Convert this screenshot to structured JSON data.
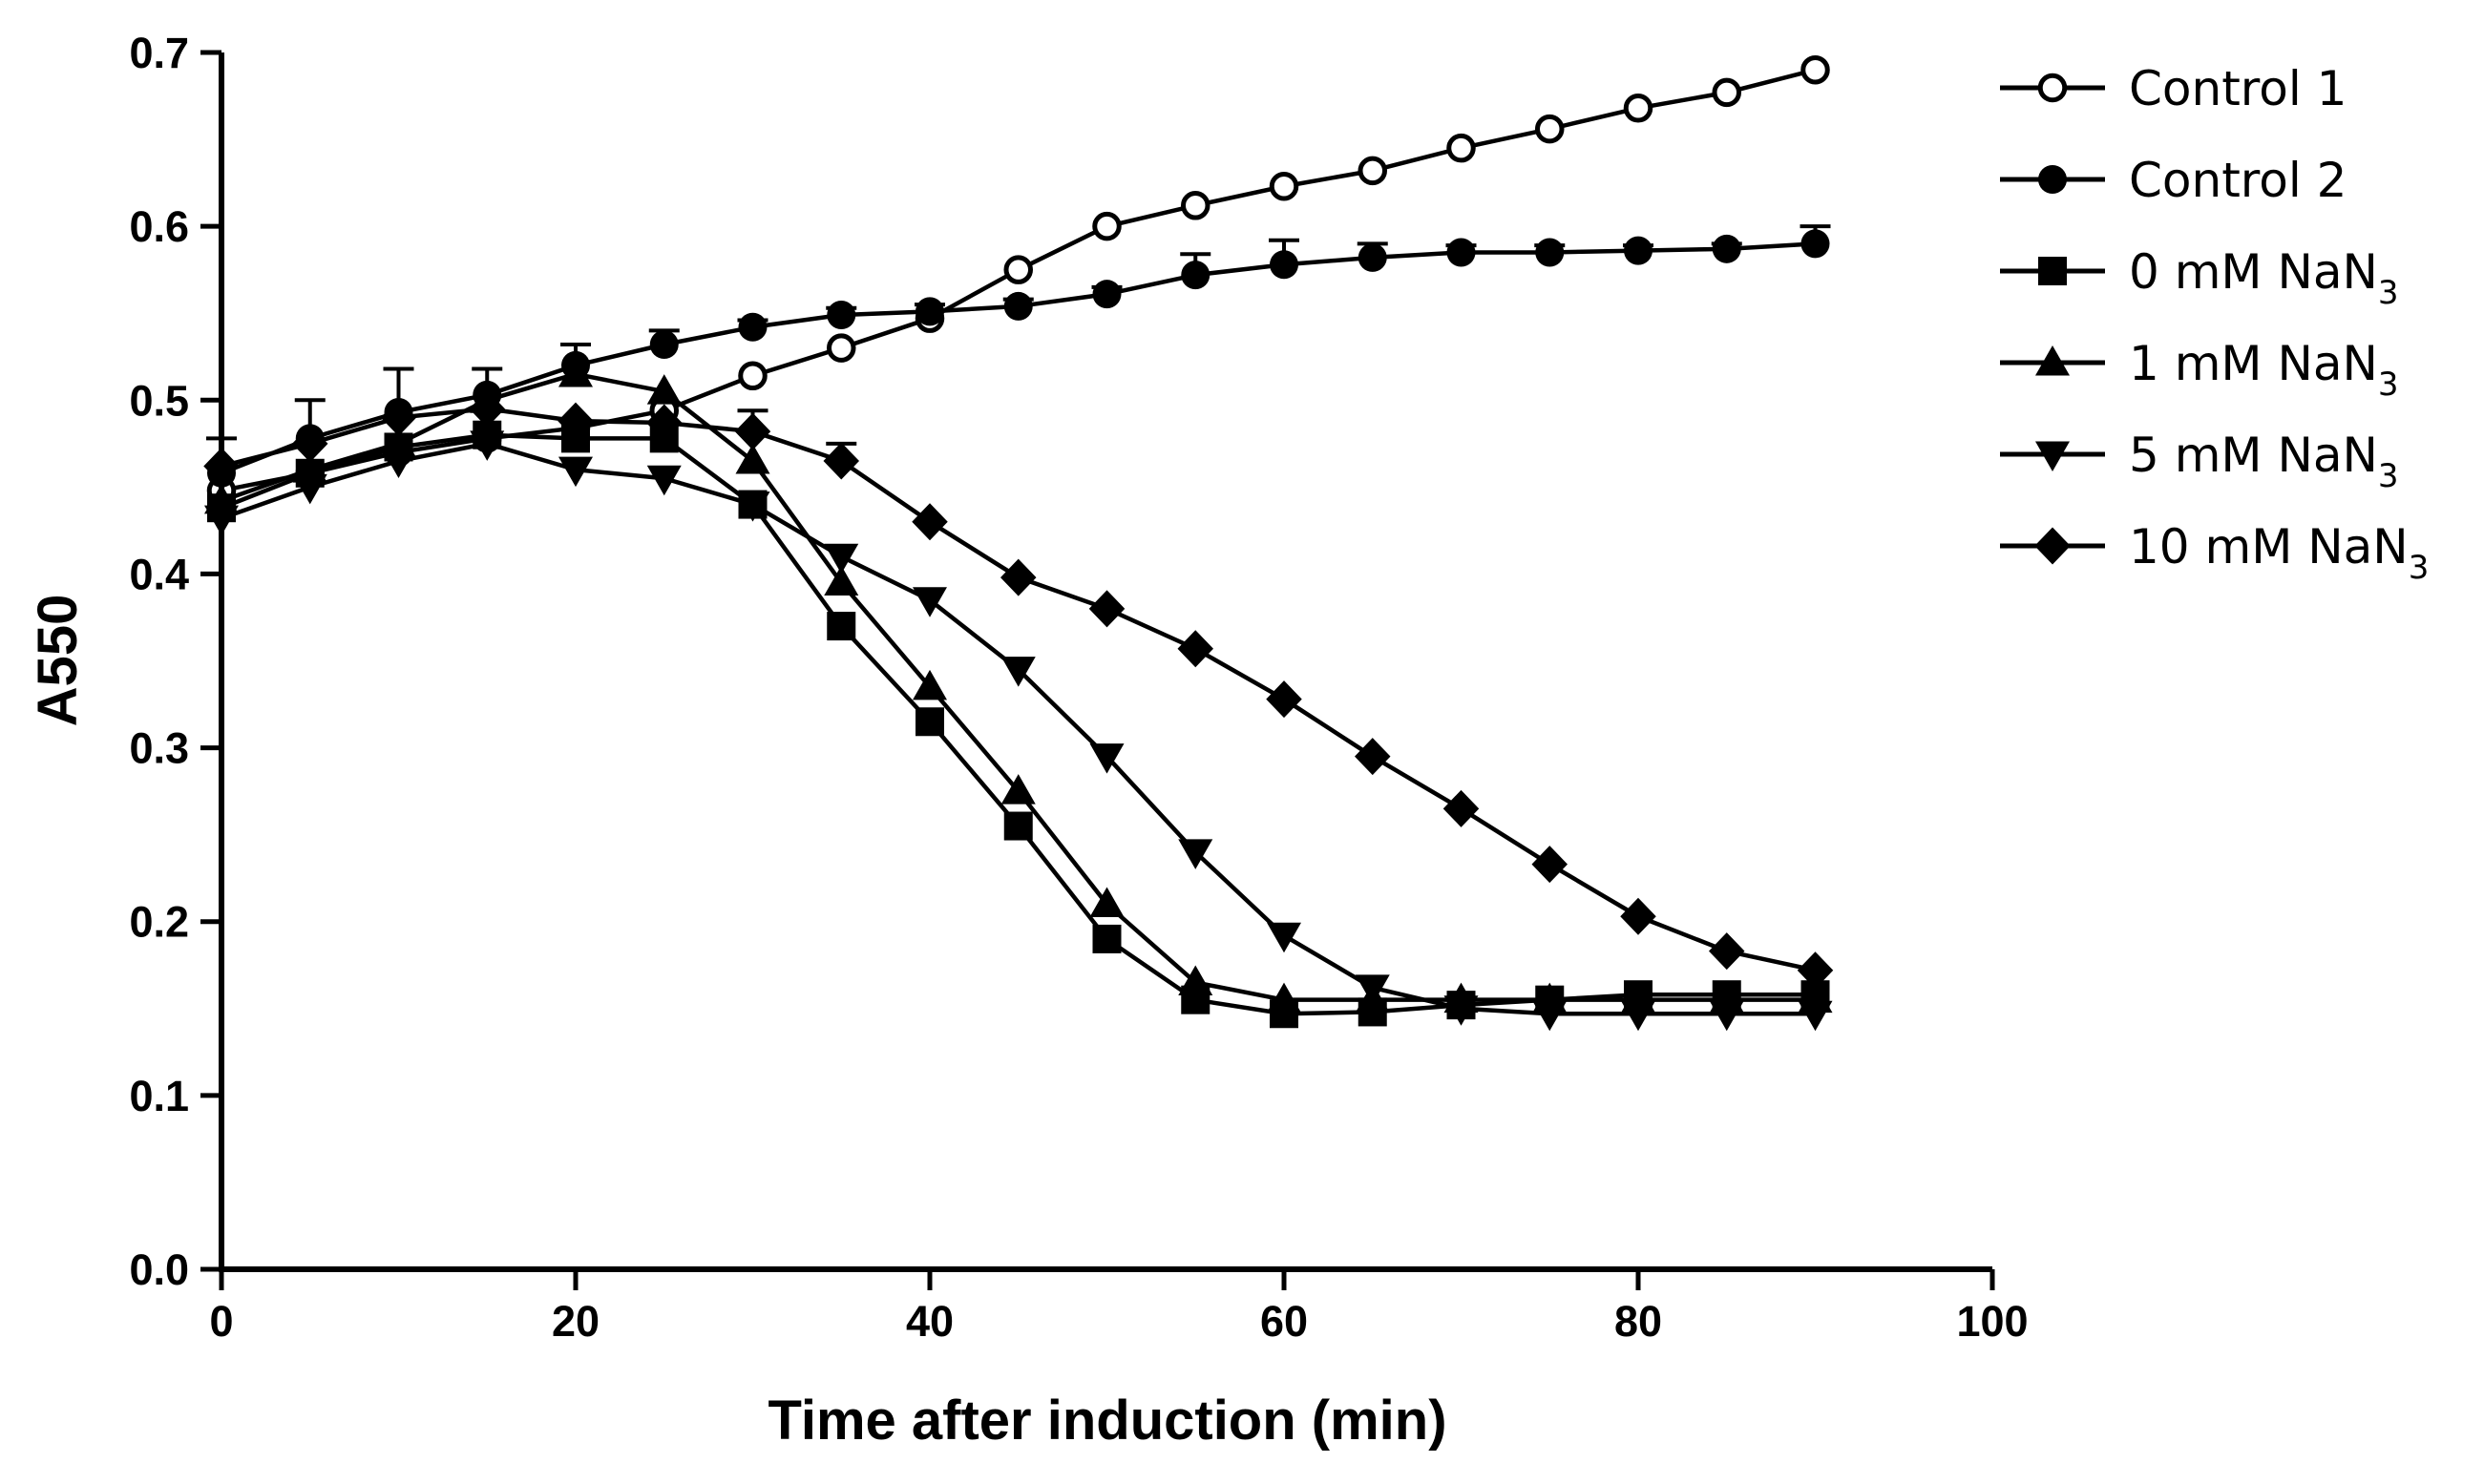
{
  "chart_data": {
    "type": "line",
    "title": "",
    "xlabel": "Time after induction (min)",
    "ylabel": "A550",
    "xlim": [
      0,
      100
    ],
    "ylim": [
      0.0,
      0.7
    ],
    "x_ticks": [
      "0",
      "20",
      "40",
      "60",
      "80",
      "100"
    ],
    "y_ticks": [
      "0.0",
      "0.1",
      "0.2",
      "0.3",
      "0.4",
      "0.5",
      "0.6",
      "0.7"
    ],
    "legend_position": "top-right, outside plot",
    "x": [
      0,
      5,
      10,
      15,
      20,
      25,
      30,
      35,
      40,
      45,
      50,
      55,
      60,
      65,
      70,
      75,
      80,
      85,
      90
    ],
    "series": [
      {
        "name": "Control 1",
        "label_main": "Control 1",
        "label_sub": "",
        "marker": "hollow-circle",
        "values": [
          0.448,
          0.458,
          0.47,
          0.478,
          0.484,
          0.494,
          0.514,
          0.53,
          0.547,
          0.575,
          0.6,
          0.612,
          0.623,
          0.632,
          0.645,
          0.656,
          0.668,
          0.677,
          0.69
        ],
        "errors": [
          0,
          0,
          0,
          0,
          0,
          0,
          0,
          0,
          0,
          0,
          0,
          0,
          0,
          0,
          0,
          0,
          0,
          0,
          0
        ]
      },
      {
        "name": "Control 2",
        "label_main": "Control 2",
        "label_sub": "",
        "marker": "circle",
        "values": [
          0.458,
          0.478,
          0.493,
          0.503,
          0.52,
          0.532,
          0.542,
          0.549,
          0.551,
          0.554,
          0.561,
          0.572,
          0.578,
          0.582,
          0.585,
          0.585,
          0.586,
          0.587,
          0.59
        ],
        "errors": [
          0.02,
          0.022,
          0.025,
          0.015,
          0.012,
          0.008,
          0.004,
          0.004,
          0.004,
          0.004,
          0.004,
          0.012,
          0.014,
          0.008,
          0.004,
          0.004,
          0.003,
          0.003,
          0.01
        ]
      },
      {
        "name": "0 mM NaN3",
        "label_main": "0 mM NaN",
        "label_sub": "3",
        "marker": "square",
        "values": [
          0.438,
          0.458,
          0.473,
          0.48,
          0.478,
          0.478,
          0.44,
          0.37,
          0.315,
          0.255,
          0.19,
          0.155,
          0.147,
          0.148,
          0.152,
          0.155,
          0.158,
          0.158,
          0.158
        ],
        "errors": [
          0,
          0,
          0,
          0,
          0,
          0,
          0,
          0,
          0,
          0,
          0,
          0,
          0,
          0,
          0,
          0,
          0,
          0,
          0
        ]
      },
      {
        "name": "1 mM NaN3",
        "label_main": "1 mM NaN",
        "label_sub": "3",
        "marker": "triangle-up",
        "values": [
          0.442,
          0.46,
          0.475,
          0.5,
          0.515,
          0.505,
          0.465,
          0.395,
          0.335,
          0.275,
          0.21,
          0.165,
          0.155,
          0.155,
          0.155,
          0.155,
          0.155,
          0.155,
          0.155
        ],
        "errors": [
          0,
          0,
          0,
          0,
          0,
          0,
          0,
          0,
          0,
          0,
          0,
          0,
          0,
          0,
          0,
          0,
          0,
          0,
          0
        ]
      },
      {
        "name": "5 mM NaN3",
        "label_main": "5 mM NaN",
        "label_sub": "3",
        "marker": "triangle-down",
        "values": [
          0.432,
          0.45,
          0.465,
          0.475,
          0.46,
          0.455,
          0.44,
          0.41,
          0.385,
          0.345,
          0.295,
          0.24,
          0.192,
          0.162,
          0.15,
          0.147,
          0.147,
          0.147,
          0.147
        ],
        "errors": [
          0,
          0,
          0,
          0,
          0,
          0,
          0,
          0,
          0,
          0,
          0,
          0,
          0,
          0,
          0,
          0,
          0,
          0,
          0
        ]
      },
      {
        "name": "10 mM NaN3",
        "label_main": "10 mM NaN",
        "label_sub": "3",
        "marker": "diamond",
        "values": [
          0.462,
          0.475,
          0.49,
          0.495,
          0.488,
          0.487,
          0.482,
          0.465,
          0.43,
          0.398,
          0.38,
          0.357,
          0.328,
          0.295,
          0.265,
          0.233,
          0.203,
          0.183,
          0.172
        ],
        "errors": [
          0,
          0,
          0,
          0,
          0,
          0,
          0.012,
          0.01,
          0,
          0,
          0,
          0,
          0,
          0,
          0,
          0,
          0,
          0,
          0
        ]
      }
    ]
  }
}
